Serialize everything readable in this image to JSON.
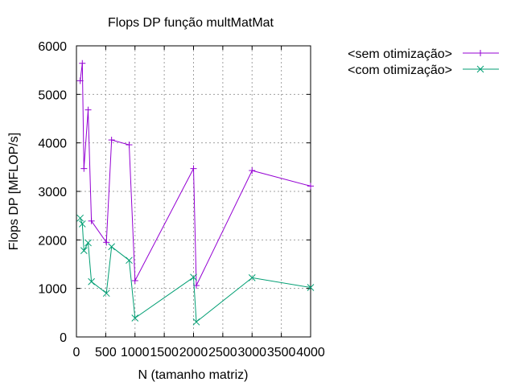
{
  "chart_data": {
    "type": "line",
    "title": "Flops DP função multMatMat",
    "xlabel": "N (tamanho matriz)",
    "ylabel": "Flops DP [MFLOP/s]",
    "xlim": [
      0,
      4000
    ],
    "ylim": [
      0,
      6000
    ],
    "x_ticks": [
      0,
      500,
      1000,
      1500,
      2000,
      2500,
      3000,
      3500,
      4000
    ],
    "x_tick_labels": [
      "0",
      "500",
      "1000",
      "1500",
      "2000",
      "2500",
      "3000",
      "3500",
      "4000"
    ],
    "y_ticks": [
      0,
      1000,
      2000,
      3000,
      4000,
      5000,
      6000
    ],
    "y_tick_labels": [
      "0",
      "1000",
      "2000",
      "3000",
      "4000",
      "5000",
      "6000"
    ],
    "grid": true,
    "legend_position": "outside-top-right",
    "series": [
      {
        "name": "<sem otimização>",
        "color": "#9400d3",
        "marker": "plus",
        "points": [
          [
            64,
            5280
          ],
          [
            100,
            5640
          ],
          [
            128,
            3470
          ],
          [
            200,
            4680
          ],
          [
            256,
            2390
          ],
          [
            512,
            1950
          ],
          [
            600,
            4060
          ],
          [
            900,
            3960
          ],
          [
            1000,
            1160
          ],
          [
            2000,
            3470
          ],
          [
            2048,
            1060
          ],
          [
            3000,
            3430
          ],
          [
            4000,
            3110
          ]
        ]
      },
      {
        "name": "<com otimização>",
        "color": "#009e73",
        "marker": "cross",
        "points": [
          [
            64,
            2450
          ],
          [
            100,
            2330
          ],
          [
            128,
            1780
          ],
          [
            200,
            1940
          ],
          [
            256,
            1140
          ],
          [
            512,
            900
          ],
          [
            600,
            1860
          ],
          [
            900,
            1580
          ],
          [
            1000,
            390
          ],
          [
            2000,
            1230
          ],
          [
            2048,
            310
          ],
          [
            3000,
            1220
          ],
          [
            4000,
            1020
          ]
        ]
      }
    ]
  }
}
